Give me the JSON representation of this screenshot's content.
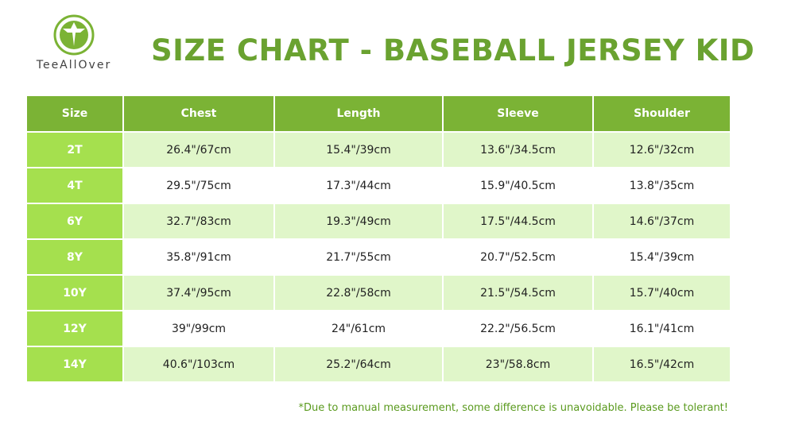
{
  "brand": {
    "name": "TeeAllOver",
    "accent_color": "#7bb335",
    "logo_icon": "arrow-emblem-icon"
  },
  "title": "SIZE CHART - BASEBALL JERSEY KID",
  "table": {
    "headers": [
      "Size",
      "Chest",
      "Length",
      "Sleeve",
      "Shoulder"
    ],
    "rows": [
      [
        "2T",
        "26.4\"/67cm",
        "15.4\"/39cm",
        "13.6\"/34.5cm",
        "12.6\"/32cm"
      ],
      [
        "4T",
        "29.5\"/75cm",
        "17.3\"/44cm",
        "15.9\"/40.5cm",
        "13.8\"/35cm"
      ],
      [
        "6Y",
        "32.7\"/83cm",
        "19.3\"/49cm",
        "17.5\"/44.5cm",
        "14.6\"/37cm"
      ],
      [
        "8Y",
        "35.8\"/91cm",
        "21.7\"/55cm",
        "20.7\"/52.5cm",
        "15.4\"/39cm"
      ],
      [
        "10Y",
        "37.4\"/95cm",
        "22.8\"/58cm",
        "21.5\"/54.5cm",
        "15.7\"/40cm"
      ],
      [
        "12Y",
        "39\"/99cm",
        "24\"/61cm",
        "22.2\"/56.5cm",
        "16.1\"/41cm"
      ],
      [
        "14Y",
        "40.6\"/103cm",
        "25.2\"/64cm",
        "23\"/58.8cm",
        "16.5\"/42cm"
      ]
    ]
  },
  "footnote": "*Due to manual measurement, some difference is unavoidable. Please be tolerant!"
}
